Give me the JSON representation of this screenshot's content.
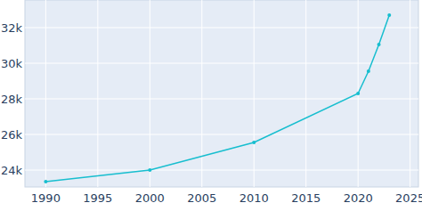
{
  "chart_data": {
    "type": "line",
    "x": [
      1990,
      2000,
      2010,
      2020,
      2021,
      2022,
      2023
    ],
    "values": [
      23350,
      24000,
      25550,
      28300,
      29550,
      31050,
      32700
    ],
    "color": "#17becf",
    "marker": "circle",
    "xlim": [
      1988,
      2025.8
    ],
    "xticks": [
      1990,
      1995,
      2000,
      2005,
      2010,
      2015,
      2020,
      2025
    ],
    "ylim": [
      23050,
      33550
    ],
    "yticks": [
      {
        "value": 24000,
        "label": "24k"
      },
      {
        "value": 26000,
        "label": "26k"
      },
      {
        "value": 28000,
        "label": "28k"
      },
      {
        "value": 30000,
        "label": "30k"
      },
      {
        "value": 32000,
        "label": "32k"
      }
    ],
    "grid": true
  }
}
